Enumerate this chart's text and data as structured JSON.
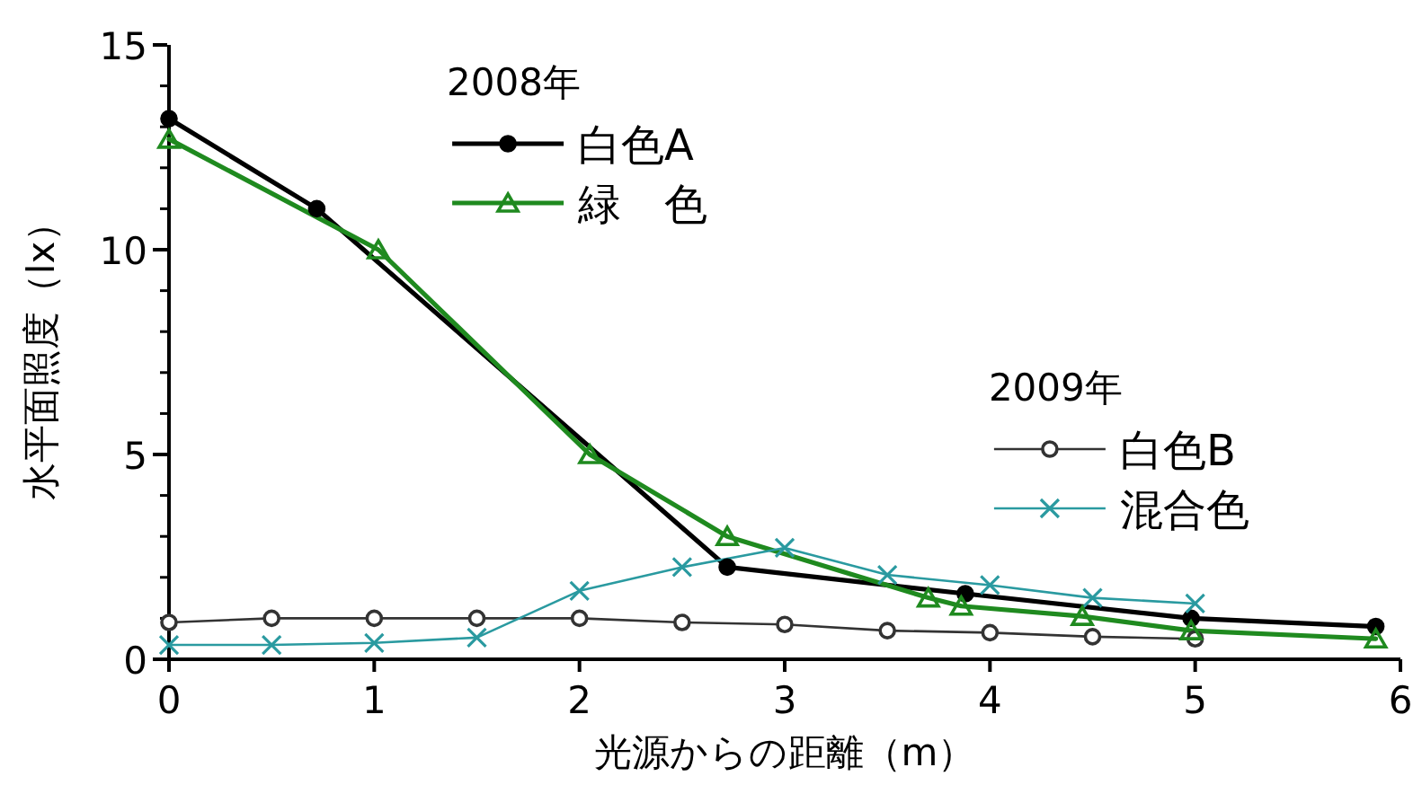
{
  "chart_data": {
    "type": "line",
    "xlabel": "光源からの距離（m）",
    "ylabel": "水平面照度（lx）",
    "xlim": [
      0,
      6
    ],
    "xticks": [
      0,
      1,
      2,
      3,
      4,
      5,
      6
    ],
    "ylim": [
      0,
      15
    ],
    "yticks": [
      0,
      5,
      10,
      15
    ],
    "legend": "top",
    "annotations": [
      "2008年",
      "2009年"
    ],
    "series": [
      {
        "name": "白色A",
        "color": "#000000",
        "marker": "circle",
        "x": [
          0,
          0.72,
          2.72,
          3.88,
          4.98,
          5.88
        ],
        "values": [
          13.2,
          11.0,
          2.25,
          1.6,
          1.0,
          0.8
        ]
      },
      {
        "name": "緑　色",
        "color": "#1f8a1f",
        "marker": "triangle",
        "x": [
          0,
          1.02,
          2.05,
          2.72,
          3.7,
          3.86,
          4.45,
          4.98,
          5.88
        ],
        "values": [
          12.7,
          10.0,
          5.0,
          3.0,
          1.5,
          1.3,
          1.05,
          0.7,
          0.5
        ]
      },
      {
        "name": "白色B",
        "color": "#333333",
        "marker": "circle",
        "x": [
          0,
          0.5,
          1,
          1.5,
          2,
          2.5,
          3,
          3.5,
          4,
          4.5,
          5
        ],
        "values": [
          0.9,
          1.0,
          1.0,
          1.0,
          1.0,
          0.9,
          0.85,
          0.7,
          0.65,
          0.55,
          0.5
        ]
      },
      {
        "name": "混合色",
        "color": "#2a9aa0",
        "marker": "cross",
        "x": [
          0,
          0.5,
          1,
          1.5,
          2,
          2.5,
          3,
          3.5,
          4,
          4.5,
          5
        ],
        "values": [
          0.35,
          0.35,
          0.4,
          0.53,
          1.67,
          2.25,
          2.72,
          2.06,
          1.81,
          1.5,
          1.36
        ]
      }
    ]
  }
}
